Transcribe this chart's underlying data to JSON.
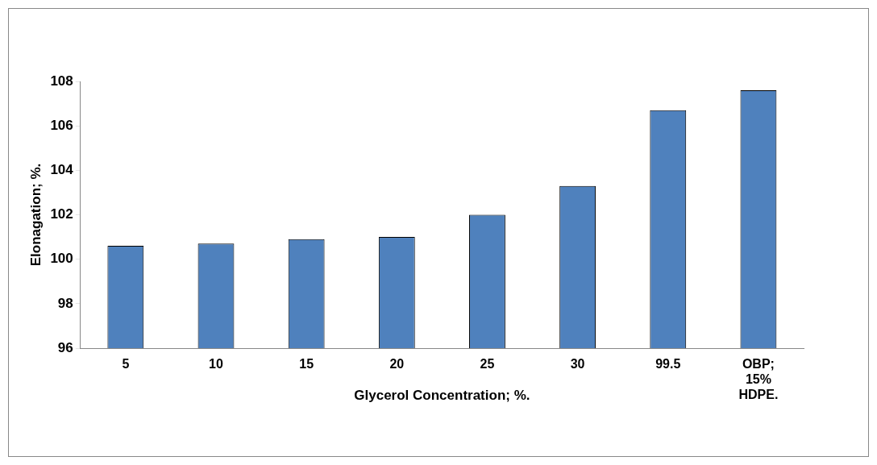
{
  "chart_data": {
    "type": "bar",
    "xlabel": "Glycerol Concentration; %.",
    "ylabel": "Elonagation; %.",
    "categories": [
      "5",
      "10",
      "15",
      "20",
      "25",
      "30",
      "99.5",
      "OBP; 15% HDPE."
    ],
    "values": [
      100.6,
      100.7,
      100.9,
      101.0,
      102.0,
      103.3,
      106.7,
      107.6
    ],
    "color": "#4f81bd",
    "ylim": [
      96,
      108
    ],
    "yticks": [
      96,
      98,
      100,
      102,
      104,
      106,
      108
    ],
    "grid": false,
    "legend": false
  }
}
